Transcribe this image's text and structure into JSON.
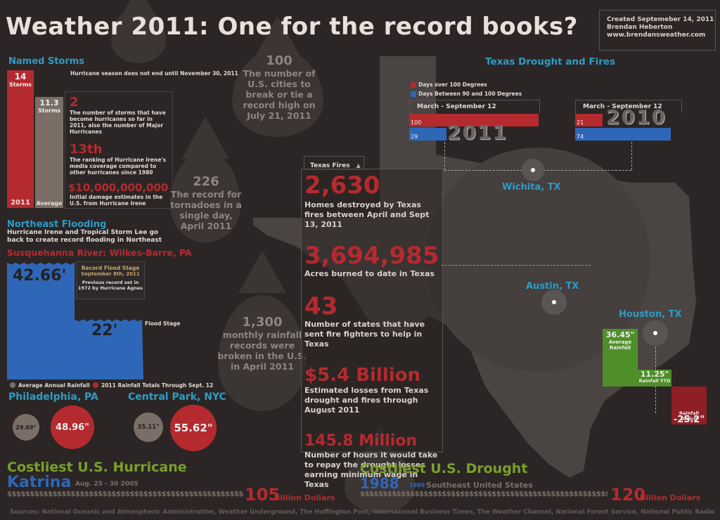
{
  "header": {
    "title": "Weather 2011: One for the record books?",
    "credit_line1": "Created Septemeber 14, 2011",
    "credit_line2": "Brendan Heberton",
    "credit_line3": "www.brendansweather.com"
  },
  "named_storms": {
    "heading": "Named Storms",
    "note": "Hurricane season does not end until November 30, 2011",
    "bar_2011_value": "14",
    "bar_2011_unit": "Storms",
    "bar_2011_label": "2011",
    "bar_avg_value": "11.3",
    "bar_avg_unit": "Storms",
    "bar_avg_label": "Average",
    "bar_2011_count": 14,
    "bar_avg_count": 11.3,
    "stat1_big": "2",
    "stat1_desc": "The number of storms that have become hurricanes so far in 2011, also the number of Major Hurricanes",
    "stat2_big": "13th",
    "stat2_desc": "The ranking of Hurricane Irene's media coverage compared to other hurricanes since 1980",
    "stat3_big": "$10,000,000,000",
    "stat3_desc": "Initial damage estimates in the U.S. from Hurricane Irene"
  },
  "flooding": {
    "heading": "Northeast Flooding",
    "desc": "Hurricane Irene and Tropical Storm Lee go back to create record flooding in Northeast",
    "river": "Susquehanna River: Wilkes-Barre, PA",
    "record_value": "42.66'",
    "flood_value": "22'",
    "record_label1": "Record Flood Stage",
    "record_label2": "September 8th, 2011",
    "record_note": "Previous record set in 1972 by Hurricane Agnes",
    "flood_stage_label": "Flood Stage",
    "record_level_ft": 42.66,
    "flood_level_ft": 22
  },
  "rainfall": {
    "legend_avg": "Average Annual Rainfall",
    "legend_2011": "2011 Rainfall Totals Through Sept. 12",
    "city1": "Philadelphia, PA",
    "city1_avg": "29.69\"",
    "city1_2011": "48.96\"",
    "city2": "Central Park, NYC",
    "city2_avg": "35.11\"",
    "city2_2011": "55.62\""
  },
  "drops": {
    "d1_big": "100",
    "d1_text": "The number of U.S. cities to break or tie a record high on July 21, 2011",
    "d2_big": "226",
    "d2_text": "The record for tornadoes in a single day, April 2011",
    "d3_big": "1,300",
    "d3_text": "monthly rainfall records were broken in the U.S. in April 2011"
  },
  "texas_fires": {
    "tab": "Texas Fires",
    "s1_big": "2,630",
    "s1_desc": "Homes destroyed by Texas fires between April and Sept 13, 2011",
    "s2_big": "3,694,985",
    "s2_desc": "Acres burned to date in Texas",
    "s3_big": "43",
    "s3_desc": "Number of states that have sent fire fighters to help in Texas",
    "s4_big": "$5.4 Billion",
    "s4_desc": "Estimated losses from Texas drought and fires through August 2011",
    "s5_big": "145.8 Million",
    "s5_desc": "Number of hours it would take to repay the drought losses earning minimum wage in Texas"
  },
  "drought": {
    "heading": "Texas Drought and Fires",
    "legend_red": "Days over 100 Degrees",
    "legend_blue": "Days Between 90 and 100 Degrees",
    "period_2011": "March - September 12",
    "period_2010": "March - September 12",
    "year_2011": "2011",
    "year_2010": "2010",
    "red_2011": "100",
    "blue_2011": "29",
    "red_2010": "21",
    "blue_2010": "74",
    "red_2011_n": 100,
    "blue_2011_n": 29,
    "red_2010_n": 21,
    "blue_2010_n": 74,
    "city_wichita": "Wichita, TX",
    "city_austin": "Austin, TX",
    "city_houston": "Houston, TX",
    "houston_avg_value": "36.45\"",
    "houston_avg_label": "Average Rainfall",
    "houston_ytd_value": "11.25\"",
    "houston_ytd_label": "Rainfall YTD",
    "houston_deficit_label": "Rainfall Deficit",
    "houston_deficit_value": "-25.2\""
  },
  "footer": {
    "hurricane_heading": "Costliest U.S. Hurricane",
    "hurricane_name": "Katrina",
    "hurricane_dates": "Aug. 25 - 30 2005",
    "hurricane_cost_num": "105",
    "hurricane_cost_unit": "Billion Dollars",
    "drought_heading": "Costliest U.S. Drought",
    "drought_year": "1988",
    "drought_range": "- 1989",
    "drought_region": "Southeast United States",
    "drought_cost_num": "120",
    "drought_cost_unit": "Billion Dollars",
    "dollars1": "$$$$$$$$$$$$$$$$$$$$$$$$$$$$$$$$$$$$$$$$$$$$$$$$$$$$$$$$$$$$",
    "dollars2": "$$$$$$$$$$$$$$$$$$$$$$$$$$$$$$$$$$$$$$$$$$$$$$$$$$$$$$$$$$$$",
    "sources": "Sources: National Oceanic and Atmospheric Administration, Weather Underground, The Huffington Post, International Business Times, The Weather Channel, National Forest Service, National Public Radio"
  },
  "colors": {
    "red": "#b52a2f",
    "blue": "#2f67b8",
    "green": "#4f8f2a",
    "olive": "#7aa02a",
    "teal": "#2e9bc4",
    "taupe": "#7a6e66"
  }
}
